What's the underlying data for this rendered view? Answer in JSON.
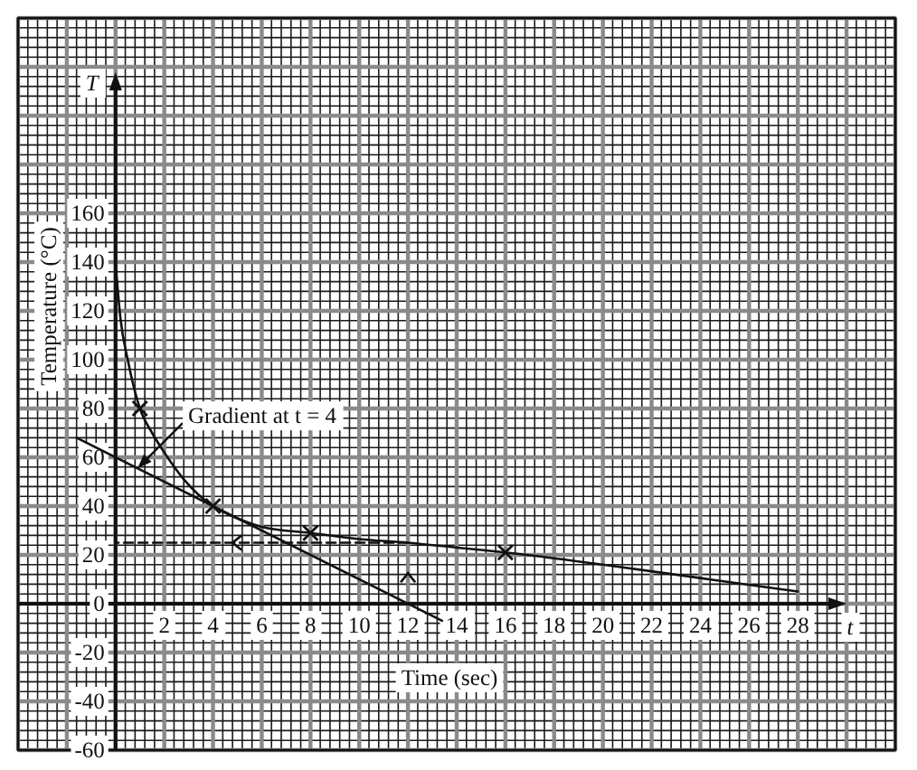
{
  "chart_data": {
    "type": "line",
    "xlabel": "Time (sec)",
    "ylabel": "Temperature (°C)",
    "xlim": [
      -4,
      32
    ],
    "ylim": [
      -60,
      240
    ],
    "xticks": [
      {
        "value": -4,
        "label": null
      },
      {
        "value": -3.6,
        "label": null
      },
      {
        "value": -3.2,
        "label": null
      },
      {
        "value": -2.8,
        "label": null
      },
      {
        "value": -2.4,
        "label": null
      },
      {
        "value": -2,
        "label": null
      },
      {
        "value": -1.6,
        "label": null
      },
      {
        "value": -1.2,
        "label": null
      },
      {
        "value": -0.8,
        "label": null
      },
      {
        "value": -0.4,
        "label": null
      },
      {
        "value": 0,
        "label": null
      },
      {
        "value": 0.4,
        "label": null
      },
      {
        "value": 0.8,
        "label": null
      },
      {
        "value": 1.2,
        "label": null
      },
      {
        "value": 1.6,
        "label": null
      },
      2,
      {
        "value": 2.4,
        "label": null
      },
      {
        "value": 2.8,
        "label": null
      },
      {
        "value": 3.2,
        "label": null
      },
      {
        "value": 3.6,
        "label": null
      },
      4,
      {
        "value": 4.4,
        "label": null
      },
      {
        "value": 4.8,
        "label": null
      },
      {
        "value": 5.2,
        "label": null
      },
      {
        "value": 5.6,
        "label": null
      },
      6,
      {
        "value": 6.4,
        "label": null
      },
      {
        "value": 6.8,
        "label": null
      },
      {
        "value": 7.2,
        "label": null
      },
      {
        "value": 7.6,
        "label": null
      },
      8,
      {
        "value": 8.4,
        "label": null
      },
      {
        "value": 8.8,
        "label": null
      },
      {
        "value": 9.2,
        "label": null
      },
      {
        "value": 9.6,
        "label": null
      },
      10,
      {
        "value": 10.4,
        "label": null
      },
      {
        "value": 10.8,
        "label": null
      },
      {
        "value": 11.2,
        "label": null
      },
      {
        "value": 11.6,
        "label": null
      },
      12,
      {
        "value": 12.4,
        "label": null
      },
      {
        "value": 12.8,
        "label": null
      },
      {
        "value": 13.2,
        "label": null
      },
      {
        "value": 13.6,
        "label": null
      },
      14,
      {
        "value": 14.4,
        "label": null
      },
      {
        "value": 14.8,
        "label": null
      },
      {
        "value": 15.2,
        "label": null
      },
      {
        "value": 15.6,
        "label": null
      },
      16,
      {
        "value": 16.4,
        "label": null
      },
      {
        "value": 16.8,
        "label": null
      },
      {
        "value": 17.2,
        "label": null
      },
      {
        "value": 17.6,
        "label": null
      },
      18,
      {
        "value": 18.4,
        "label": null
      },
      {
        "value": 18.8,
        "label": null
      },
      {
        "value": 19.2,
        "label": null
      },
      {
        "value": 19.6,
        "label": null
      },
      20,
      {
        "value": 20.4,
        "label": null
      },
      {
        "value": 20.8,
        "label": null
      },
      {
        "value": 21.2,
        "label": null
      },
      {
        "value": 21.6,
        "label": null
      },
      22,
      {
        "value": 22.4,
        "label": null
      },
      {
        "value": 22.8,
        "label": null
      },
      {
        "value": 23.2,
        "label": null
      },
      {
        "value": 23.6,
        "label": null
      },
      24,
      {
        "value": 24.4,
        "label": null
      },
      {
        "value": 24.8,
        "label": null
      },
      {
        "value": 25.2,
        "label": null
      },
      {
        "value": 25.6,
        "label": null
      },
      26,
      {
        "value": 26.4,
        "label": null
      },
      {
        "value": 26.8,
        "label": null
      },
      {
        "value": 27.2,
        "label": null
      },
      {
        "value": 27.6,
        "label": null
      },
      28,
      {
        "value": 28.4,
        "label": null
      },
      {
        "value": 28.8,
        "label": null
      },
      {
        "value": 29.2,
        "label": null
      },
      {
        "value": 29.6,
        "label": null
      },
      {
        "value": 30,
        "label": null
      },
      {
        "value": 30.4,
        "label": null
      },
      {
        "value": 30.8,
        "label": null
      },
      {
        "value": 31.2,
        "label": null
      },
      {
        "value": 31.6,
        "label": null
      },
      {
        "value": 32,
        "label": null
      }
    ],
    "yticks": [
      -60,
      {
        "value": -56,
        "label": null
      },
      {
        "value": -52,
        "label": null
      },
      {
        "value": -48,
        "label": null
      },
      {
        "value": -44,
        "label": null
      },
      -40,
      {
        "value": -36,
        "label": null
      },
      {
        "value": -32,
        "label": null
      },
      {
        "value": -28,
        "label": null
      },
      {
        "value": -24,
        "label": null
      },
      -20,
      {
        "value": -16,
        "label": null
      },
      {
        "value": -12,
        "label": null
      },
      {
        "value": -8,
        "label": null
      },
      {
        "value": -4,
        "label": null
      },
      0,
      {
        "value": 4,
        "label": null
      },
      {
        "value": 8,
        "label": null
      },
      {
        "value": 12,
        "label": null
      },
      {
        "value": 16,
        "label": null
      },
      20,
      {
        "value": 24,
        "label": null
      },
      {
        "value": 28,
        "label": null
      },
      {
        "value": 32,
        "label": null
      },
      {
        "value": 36,
        "label": null
      },
      40,
      {
        "value": 44,
        "label": null
      },
      {
        "value": 48,
        "label": null
      },
      {
        "value": 52,
        "label": null
      },
      {
        "value": 56,
        "label": null
      },
      60,
      {
        "value": 64,
        "label": null
      },
      {
        "value": 68,
        "label": null
      },
      {
        "value": 72,
        "label": null
      },
      {
        "value": 76,
        "label": null
      },
      80,
      {
        "value": 84,
        "label": null
      },
      {
        "value": 88,
        "label": null
      },
      {
        "value": 92,
        "label": null
      },
      {
        "value": 96,
        "label": null
      },
      100,
      {
        "value": 104,
        "label": null
      },
      {
        "value": 108,
        "label": null
      },
      {
        "value": 112,
        "label": null
      },
      {
        "value": 116,
        "label": null
      },
      120,
      {
        "value": 124,
        "label": null
      },
      {
        "value": 128,
        "label": null
      },
      {
        "value": 132,
        "label": null
      },
      {
        "value": 136,
        "label": null
      },
      140,
      {
        "value": 144,
        "label": null
      },
      {
        "value": 148,
        "label": null
      },
      {
        "value": 152,
        "label": null
      },
      {
        "value": 156,
        "label": null
      },
      160,
      {
        "value": 164,
        "label": null
      },
      {
        "value": 168,
        "label": null
      },
      {
        "value": 172,
        "label": null
      },
      {
        "value": 176,
        "label": null
      },
      {
        "value": 180,
        "label": null
      },
      {
        "value": 184,
        "label": null
      },
      {
        "value": 188,
        "label": null
      },
      {
        "value": 192,
        "label": null
      },
      {
        "value": 196,
        "label": null
      },
      {
        "value": 200,
        "label": null
      },
      {
        "value": 204,
        "label": null
      },
      {
        "value": 208,
        "label": null
      },
      {
        "value": 212,
        "label": null
      },
      {
        "value": 216,
        "label": null
      },
      {
        "value": 220,
        "label": null
      },
      {
        "value": 224,
        "label": null
      },
      {
        "value": 228,
        "label": null
      },
      {
        "value": 232,
        "label": null
      },
      {
        "value": 236,
        "label": null
      },
      {
        "value": 240,
        "label": null
      }
    ],
    "grid": true,
    "series": [
      {
        "color": "#111111",
        "x": [
          0,
          0.2,
          0.5,
          1,
          1.5,
          2,
          2.8,
          4,
          5,
          6,
          8,
          10,
          12,
          14,
          16,
          20,
          24,
          28
        ],
        "values": [
          140,
          117,
          100,
          80,
          70,
          62,
          51,
          40,
          35,
          31.5,
          29,
          26.5,
          25,
          23,
          21,
          16,
          10.5,
          5
        ]
      },
      {
        "type": "scatter",
        "color": "#111111",
        "marker": "cross",
        "x": [
          1,
          4,
          8,
          16
        ],
        "values": [
          80,
          40,
          29,
          21
        ]
      },
      {
        "color": "#111111",
        "x": [
          -1.6,
          13.4
        ],
        "values": [
          68,
          -7
        ]
      },
      {
        "color": "#111111",
        "line_style": "dashed",
        "x": [
          12,
          0
        ],
        "values": [
          25,
          25
        ]
      }
    ],
    "annotations": [
      {
        "text": "Gradient at t = 4",
        "x": 0.9,
        "y": 55.5
      },
      "T",
      "t"
    ]
  }
}
